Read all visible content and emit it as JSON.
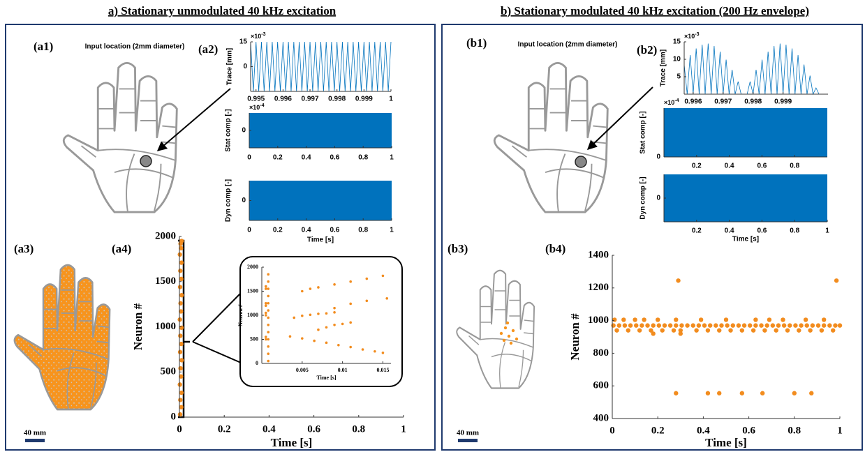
{
  "titles": {
    "a": "a) Stationary unmodulated 40 kHz excitation",
    "b": "b) Stationary modulated 40 kHz excitation (200 Hz envelope)"
  },
  "panel_labels": [
    "(a1)",
    "(a2)",
    "(a3)",
    "(a4)",
    "(b1)",
    "(b2)",
    "(b3)",
    "(b4)"
  ],
  "annotations": {
    "input_a": "Input location (2mm diameter)",
    "input_b": "Input location (2mm diameter)",
    "scale_a": "40 mm",
    "scale_b": "40 mm"
  },
  "chart_data": [
    {
      "type": "line",
      "ylabel": "Trace [mm]",
      "y_exponent": {
        "base": "×10",
        "power": "-3"
      },
      "color": "#0072bd",
      "x": [
        0.9948,
        0.9949,
        0.995,
        0.9951,
        0.9952,
        0.9953,
        0.9954,
        0.9955,
        0.9956,
        0.9957,
        0.9958,
        0.9959,
        0.996,
        0.9961,
        0.9962,
        0.9963,
        0.9964,
        0.9965,
        0.9966,
        0.9967,
        0.9968,
        0.9969,
        0.997,
        0.9971,
        0.9972,
        0.9973,
        0.9974,
        0.9975,
        0.9976,
        0.9977,
        0.9978,
        0.9979,
        0.998,
        0.9981,
        0.9982,
        0.9983,
        0.9984,
        0.9985,
        0.9986,
        0.9987,
        0.9988,
        0.9989,
        0.999,
        0.9991,
        0.9992,
        0.9993,
        0.9994,
        0.9995,
        0.9996,
        0.9997,
        0.9998,
        0.9999,
        1
      ],
      "values": [
        15,
        -15,
        15,
        -15,
        15,
        -15,
        15,
        -15,
        15,
        -15,
        15,
        -15,
        15,
        -15,
        15,
        -15,
        15,
        -15,
        15,
        -15,
        15,
        -15,
        15,
        -15,
        15,
        -15,
        15,
        -15,
        15,
        -15,
        15,
        -15,
        15,
        -15,
        15,
        -15,
        15,
        -15,
        15,
        -15,
        15,
        -15,
        15,
        -15,
        15,
        -15,
        15,
        -15,
        15,
        -15,
        15,
        -15,
        15
      ],
      "xlim": [
        0.9948,
        1
      ],
      "ylim": [
        -15,
        15
      ],
      "xticks": [
        0.995,
        0.996,
        0.997,
        0.998,
        0.999,
        1
      ],
      "yticks": [
        0,
        15
      ]
    },
    {
      "type": "band",
      "ylabel": "Stat comp [-]",
      "y_exponent": {
        "base": "×10",
        "power": "-4"
      },
      "color": "#0072bd",
      "x": [
        0,
        1
      ],
      "high": [
        1,
        1
      ],
      "low": [
        -1,
        -1
      ],
      "xlim": [
        0,
        1
      ],
      "ylim": [
        -1,
        1
      ],
      "xticks": [
        0,
        0.2,
        0.4,
        0.6,
        0.8,
        1
      ],
      "yticks": [
        0
      ]
    },
    {
      "type": "band",
      "ylabel": "Dyn comp [-]",
      "xlabel": "Time [s]",
      "color": "#0072bd",
      "x": [
        0,
        1
      ],
      "high": [
        1,
        1
      ],
      "low": [
        -1,
        -1
      ],
      "xlim": [
        0,
        1
      ],
      "ylim": [
        -1,
        1
      ],
      "xticks": [
        0,
        0.2,
        0.4,
        0.6,
        0.8,
        1
      ],
      "yticks": [
        0
      ]
    },
    {
      "type": "scatter",
      "ylabel": "Neuron #",
      "xlabel": "Time [s]",
      "color": "#f28c1e",
      "x": [
        0.003,
        0.008,
        0.004,
        0.009,
        0.002,
        0.007,
        0.005,
        0.01,
        0.003,
        0.008,
        0.004,
        0.009,
        0.002,
        0.007,
        0.005,
        0.01,
        0.003,
        0.008,
        0.004,
        0.009,
        0.002,
        0.007,
        0.005,
        0.01
      ],
      "values": [
        30,
        110,
        190,
        270,
        360,
        450,
        540,
        630,
        720,
        810,
        900,
        990,
        1080,
        1170,
        1260,
        1350,
        1440,
        1530,
        1620,
        1710,
        1800,
        1870,
        1920,
        1950
      ],
      "xlim": [
        0,
        1
      ],
      "ylim": [
        0,
        2000
      ],
      "xticks": [
        0,
        0.2,
        0.4,
        0.6,
        0.8,
        1
      ],
      "yticks": [
        0,
        500,
        1000,
        1500,
        2000
      ]
    },
    {
      "type": "scatter",
      "ylabel": "Neuron #",
      "xlabel": "Time [s]",
      "color": "#f28c1e",
      "x": [
        0.0008,
        0.0008,
        0.0008,
        0.0008,
        0.0008,
        0.0008,
        0.0008,
        0.0008,
        0.0008,
        0.0008,
        0.0008,
        0.0008,
        0.0008,
        0.0005,
        0.0005,
        0.0005,
        0.0005,
        0.0005,
        0.0005,
        0.0005,
        0.0005,
        0.0035,
        0.005,
        0.0065,
        0.008,
        0.0095,
        0.011,
        0.0125,
        0.014,
        0.015,
        0.004,
        0.005,
        0.006,
        0.007,
        0.008,
        0.009,
        0.005,
        0.006,
        0.007,
        0.009,
        0.011,
        0.013,
        0.015,
        0.007,
        0.008,
        0.009,
        0.01,
        0.011,
        0.009,
        0.011,
        0.013,
        0.0155
      ],
      "values": [
        50,
        200,
        350,
        500,
        650,
        800,
        950,
        1100,
        1250,
        1400,
        1550,
        1700,
        1850,
        500,
        550,
        1000,
        1050,
        1200,
        1250,
        1550,
        1600,
        560,
        520,
        470,
        430,
        380,
        340,
        290,
        250,
        220,
        950,
        990,
        1010,
        1030,
        1040,
        1060,
        1500,
        1550,
        1580,
        1640,
        1700,
        1760,
        1820,
        700,
        750,
        800,
        820,
        850,
        1150,
        1240,
        1300,
        1350
      ],
      "xlim": [
        0,
        0.016
      ],
      "ylim": [
        0,
        2000
      ],
      "xticks": [
        0.005,
        0.01,
        0.015
      ],
      "yticks": [
        0,
        500,
        1000,
        1500,
        2000
      ]
    },
    {
      "type": "line",
      "ylabel": "Trace [mm]",
      "y_exponent": {
        "base": "×10",
        "power": "-3"
      },
      "color": "#0072bd",
      "x": [
        0.9957,
        0.9958,
        0.9959,
        0.996,
        0.9961,
        0.9962,
        0.9963,
        0.9964,
        0.9965,
        0.9966,
        0.9967,
        0.9968,
        0.9969,
        0.997,
        0.9971,
        0.9972,
        0.9973,
        0.9974,
        0.9975,
        0.9976,
        0.9977,
        0.9978,
        0.9979,
        0.998,
        0.9981,
        0.9982,
        0.9983,
        0.9984,
        0.9985,
        0.9986,
        0.9987,
        0.9988,
        0.9989,
        0.999,
        0.9991,
        0.9992,
        0.9993,
        0.9994,
        0.9995,
        0.9996,
        0.9997,
        0.9998,
        0.9999,
        1,
        1.0001,
        1.0002
      ],
      "values": [
        8.5,
        0,
        11.2,
        0,
        13.1,
        0,
        14.2,
        0,
        14.5,
        0,
        13.8,
        0,
        12.2,
        0,
        9.9,
        0,
        7,
        0,
        3.6,
        0,
        0,
        0,
        3.6,
        0,
        7,
        0,
        9.9,
        0,
        12.2,
        0,
        13.8,
        0,
        14.5,
        0,
        14.2,
        0,
        13.1,
        0,
        11.2,
        0,
        8.5,
        0,
        5.3,
        0,
        1.8,
        0
      ],
      "xlim": [
        0.9957,
        1.0005
      ],
      "ylim": [
        0,
        15
      ],
      "xticks": [
        0.996,
        0.997,
        0.998,
        0.999
      ],
      "yticks": [
        5,
        10,
        15
      ]
    },
    {
      "type": "band",
      "ylabel": "Stat comp [-]",
      "y_exponent": {
        "base": "×10",
        "power": "-4"
      },
      "color": "#0072bd",
      "x": [
        0,
        1
      ],
      "high": [
        1,
        1
      ],
      "low": [
        0,
        0
      ],
      "xlim": [
        0,
        1
      ],
      "ylim": [
        0,
        1
      ],
      "xticks": [
        0.2,
        0.4,
        0.6,
        0.8
      ],
      "yticks": [
        0
      ]
    },
    {
      "type": "band",
      "ylabel": "Dyn comp [-]",
      "xlabel": "Time [s]",
      "color": "#0072bd",
      "x": [
        0,
        1
      ],
      "high": [
        1,
        1
      ],
      "low": [
        -1,
        -1
      ],
      "xlim": [
        0,
        1
      ],
      "ylim": [
        -1,
        1
      ],
      "xticks": [
        0.2,
        0.4,
        0.6,
        0.8,
        1
      ],
      "yticks": [
        0
      ]
    },
    {
      "type": "scatter",
      "ylabel": "Neuron #",
      "xlabel": "Time [s]",
      "color": "#f28c1e",
      "x": [
        0.005,
        0.03,
        0.055,
        0.08,
        0.105,
        0.13,
        0.155,
        0.18,
        0.205,
        0.23,
        0.255,
        0.28,
        0.305,
        0.33,
        0.355,
        0.38,
        0.405,
        0.43,
        0.455,
        0.48,
        0.505,
        0.53,
        0.555,
        0.58,
        0.605,
        0.63,
        0.655,
        0.68,
        0.705,
        0.73,
        0.755,
        0.78,
        0.805,
        0.83,
        0.855,
        0.88,
        0.905,
        0.93,
        0.955,
        0.98,
        1,
        0.02,
        0.07,
        0.12,
        0.17,
        0.22,
        0.27,
        0.3,
        0.37,
        0.42,
        0.47,
        0.52,
        0.57,
        0.62,
        0.67,
        0.72,
        0.77,
        0.82,
        0.87,
        0.92,
        0.97,
        0.01,
        0.05,
        0.1,
        0.14,
        0.2,
        0.28,
        0.39,
        0.5,
        0.63,
        0.69,
        0.75,
        0.85,
        0.93,
        0.29,
        0.985,
        0.28,
        0.42,
        0.47,
        0.57,
        0.66,
        0.8,
        0.875,
        0.18,
        0.3
      ],
      "values": [
        970,
        970,
        970,
        970,
        970,
        970,
        970,
        970,
        970,
        970,
        970,
        970,
        970,
        970,
        970,
        970,
        970,
        970,
        970,
        970,
        970,
        970,
        970,
        970,
        970,
        970,
        970,
        970,
        970,
        970,
        970,
        970,
        970,
        970,
        970,
        970,
        970,
        970,
        970,
        970,
        970,
        940,
        940,
        940,
        940,
        940,
        940,
        940,
        940,
        940,
        940,
        940,
        940,
        940,
        940,
        940,
        940,
        940,
        940,
        940,
        940,
        1005,
        1005,
        1005,
        1005,
        1005,
        1005,
        1005,
        1005,
        1005,
        1005,
        1005,
        1005,
        1005,
        1245,
        1245,
        555,
        555,
        555,
        555,
        555,
        555,
        555,
        920,
        920
      ],
      "xlim": [
        0,
        1
      ],
      "ylim": [
        400,
        1400
      ],
      "xticks": [
        0,
        0.2,
        0.4,
        0.6,
        0.8,
        1
      ],
      "yticks": [
        400,
        600,
        800,
        1000,
        1200,
        1400
      ]
    }
  ]
}
